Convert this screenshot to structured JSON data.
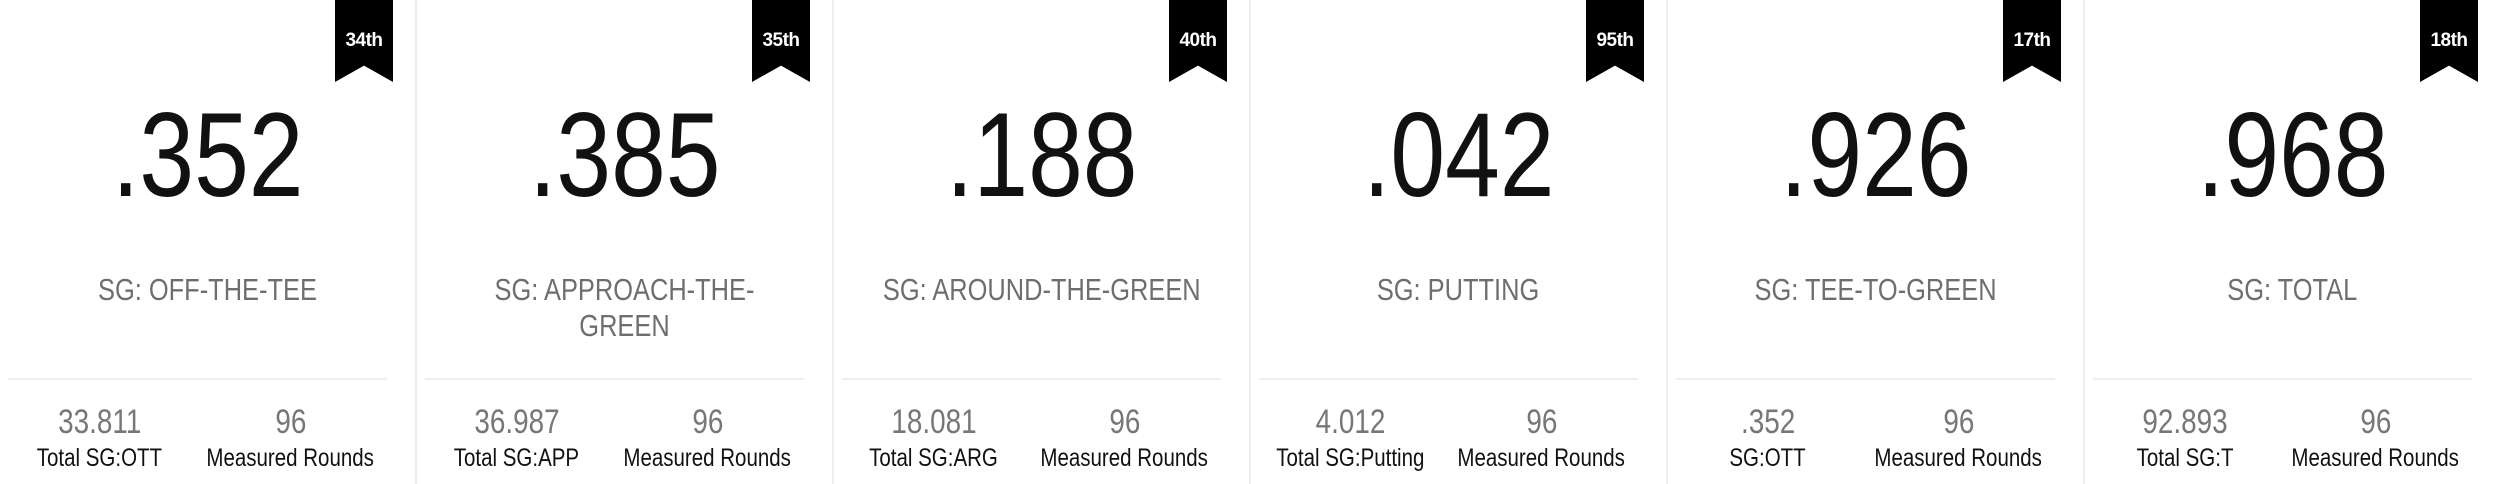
{
  "cards": [
    {
      "rank": "34th",
      "value": ".352",
      "label": "SG: OFF-THE-TEE",
      "stat1_value": "33.811",
      "stat1_label": "Total SG:OTT",
      "stat2_value": "96",
      "stat2_label": "Measured Rounds"
    },
    {
      "rank": "35th",
      "value": ".385",
      "label": "SG: APPROACH-THE-GREEN",
      "stat1_value": "36.987",
      "stat1_label": "Total SG:APP",
      "stat2_value": "96",
      "stat2_label": "Measured Rounds"
    },
    {
      "rank": "40th",
      "value": ".188",
      "label": "SG: AROUND-THE-GREEN",
      "stat1_value": "18.081",
      "stat1_label": "Total SG:ARG",
      "stat2_value": "96",
      "stat2_label": "Measured Rounds"
    },
    {
      "rank": "95th",
      "value": ".042",
      "label": "SG: PUTTING",
      "stat1_value": "4.012",
      "stat1_label": "Total SG:Putting",
      "stat2_value": "96",
      "stat2_label": "Measured Rounds"
    },
    {
      "rank": "17th",
      "value": ".926",
      "label": "SG: TEE-TO-GREEN",
      "stat1_value": ".352",
      "stat1_label": "SG:OTT",
      "stat2_value": "96",
      "stat2_label": "Measured Rounds"
    },
    {
      "rank": "18th",
      "value": ".968",
      "label": "SG: TOTAL",
      "stat1_value": "92.893",
      "stat1_label": "Total SG:T",
      "stat2_value": "96",
      "stat2_label": "Measured Rounds"
    }
  ]
}
